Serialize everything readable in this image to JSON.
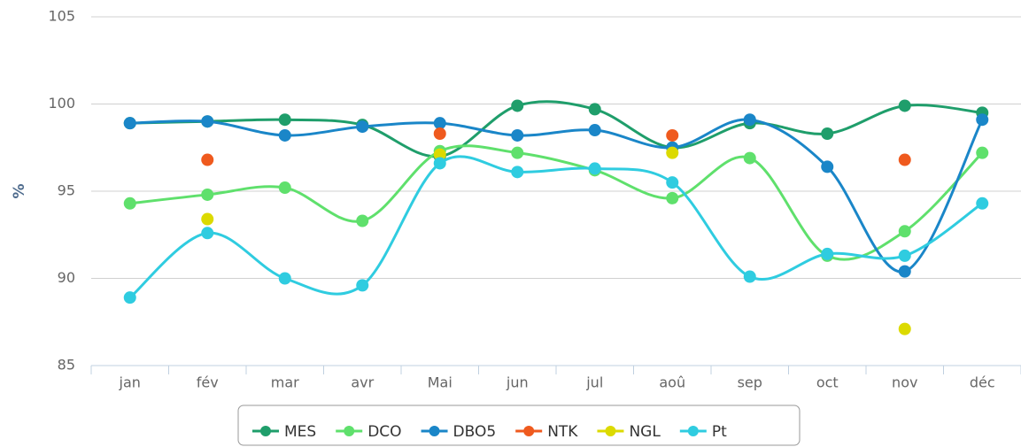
{
  "chart_data": {
    "type": "line",
    "y_label": "%",
    "categories": [
      "jan",
      "fév",
      "mar",
      "avr",
      "Mai",
      "jun",
      "jul",
      "aoû",
      "sep",
      "oct",
      "nov",
      "déc"
    ],
    "ylim": [
      85,
      105
    ],
    "yticks": [
      85,
      90,
      95,
      100,
      105
    ],
    "grid": true,
    "legend": "bottom",
    "series": [
      {
        "name": "MES",
        "color": "#1f9e6b",
        "values": [
          98.9,
          99.0,
          99.1,
          98.8,
          97.0,
          99.9,
          99.7,
          97.5,
          98.9,
          98.3,
          99.9,
          99.5
        ]
      },
      {
        "name": "DCO",
        "color": "#5fe06c",
        "values": [
          94.3,
          94.8,
          95.2,
          93.3,
          97.3,
          97.2,
          96.2,
          94.6,
          96.9,
          91.3,
          92.7,
          97.2
        ]
      },
      {
        "name": "DBO5",
        "color": "#1a86c8",
        "values": [
          98.9,
          99.0,
          98.2,
          98.7,
          98.9,
          98.2,
          98.5,
          97.5,
          99.1,
          96.4,
          90.4,
          99.1
        ]
      },
      {
        "name": "NTK",
        "color": "#ef5a1e",
        "values": [
          null,
          96.8,
          null,
          null,
          98.3,
          null,
          null,
          98.2,
          null,
          null,
          96.8,
          null
        ]
      },
      {
        "name": "NGL",
        "color": "#dcda00",
        "values": [
          null,
          93.4,
          null,
          null,
          97.1,
          null,
          null,
          97.2,
          null,
          null,
          87.1,
          null
        ]
      },
      {
        "name": "Pt",
        "color": "#2fcce0",
        "values": [
          88.9,
          92.6,
          90.0,
          89.6,
          96.6,
          96.1,
          96.3,
          95.5,
          90.1,
          91.4,
          91.3,
          94.3
        ]
      }
    ]
  }
}
